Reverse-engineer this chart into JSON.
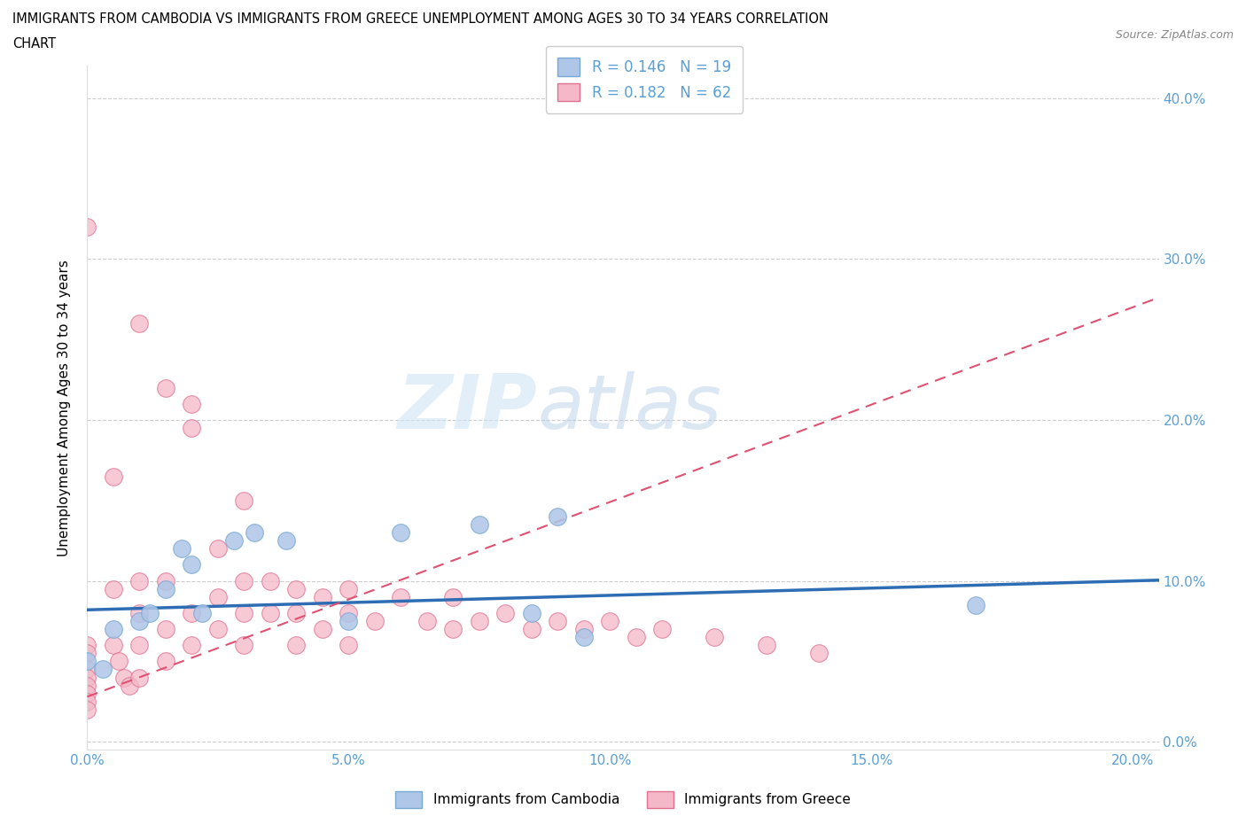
{
  "title": "IMMIGRANTS FROM CAMBODIA VS IMMIGRANTS FROM GREECE UNEMPLOYMENT AMONG AGES 30 TO 34 YEARS CORRELATION\nCHART",
  "source": "Source: ZipAtlas.com",
  "ylabel": "Unemployment Among Ages 30 to 34 years",
  "xlim": [
    0.0,
    0.205
  ],
  "ylim": [
    -0.005,
    0.42
  ],
  "xticks": [
    0.0,
    0.05,
    0.1,
    0.15,
    0.2
  ],
  "yticks": [
    0.0,
    0.1,
    0.2,
    0.3,
    0.4
  ],
  "xtick_labels": [
    "0.0%",
    "5.0%",
    "10.0%",
    "15.0%",
    "20.0%"
  ],
  "ytick_labels": [
    "0.0%",
    "10.0%",
    "20.0%",
    "30.0%",
    "40.0%"
  ],
  "cambodia_color": "#aec6e8",
  "cambodia_edge": "#7aaad4",
  "greece_color": "#f4b8c8",
  "greece_edge": "#e07090",
  "trend_cambodia_color": "#2e6db4",
  "trend_greece_color": "#e05070",
  "r_cambodia": 0.146,
  "n_cambodia": 19,
  "r_greece": 0.182,
  "n_greece": 62,
  "legend_label_cambodia": "Immigrants from Cambodia",
  "legend_label_greece": "Immigrants from Greece",
  "watermark_zip": "ZIP",
  "watermark_atlas": "atlas",
  "grid_color": "#cccccc",
  "tick_color": "#5a9fd4"
}
